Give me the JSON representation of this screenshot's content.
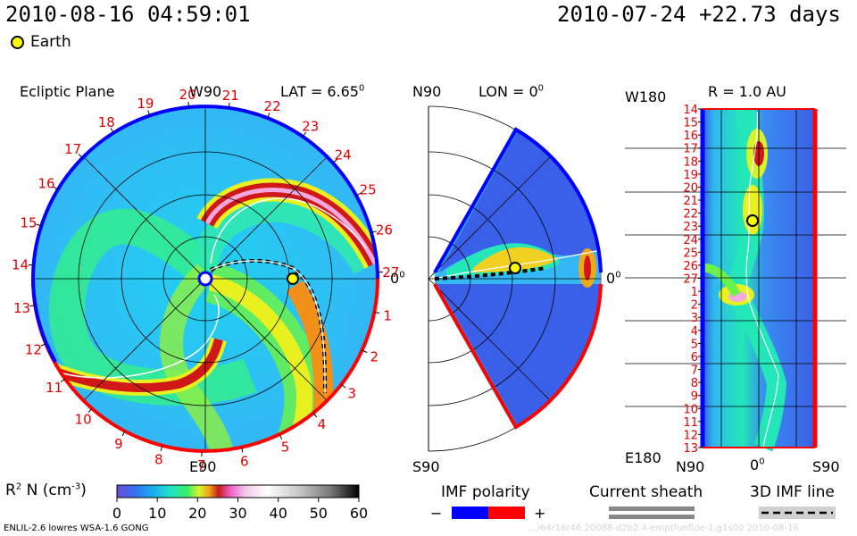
{
  "header": {
    "datetime": "2010-08-16 04:59:01",
    "reference": "2010-07-24 +22.73 days",
    "earth_legend": "Earth"
  },
  "ecliptic": {
    "title": "Ecliptic Plane",
    "top_label": "W90",
    "bottom_label": "E90",
    "lat_label": "LAT = 6.65",
    "lat_sup": "0",
    "right_zero": "0",
    "right_sup": "0",
    "rot_labels": [
      "14",
      "15",
      "16",
      "17",
      "18",
      "19",
      "20",
      "21",
      "22",
      "23",
      "24",
      "25",
      "26",
      "27",
      "1",
      "2",
      "3",
      "4",
      "5",
      "6",
      "7",
      "8",
      "9",
      "10",
      "11",
      "12",
      "13"
    ]
  },
  "meridional": {
    "top_label": "N90",
    "bottom_label": "S90",
    "lon_label": "LON = 0",
    "lon_sup": "0",
    "right_zero": "0",
    "right_sup": "0"
  },
  "strip": {
    "title": "R = 1.0 AU",
    "top_left": "W180",
    "bottom_left": "E180",
    "bottom_n": "N90",
    "bottom_zero": "0",
    "bottom_zero_sup": "0",
    "bottom_s": "S90",
    "rot_labels": [
      "14",
      "15",
      "16",
      "17",
      "18",
      "19",
      "20",
      "21",
      "22",
      "23",
      "24",
      "25",
      "26",
      "27",
      "1",
      "2",
      "3",
      "4",
      "5",
      "6",
      "7",
      "8",
      "9",
      "10",
      "11",
      "12",
      "13"
    ]
  },
  "colorbar": {
    "label_r": "R",
    "label_sup": "2",
    "label_n": " N (cm",
    "label_exp": "-3",
    "label_end": ")",
    "ticks": [
      "0",
      "10",
      "20",
      "30",
      "40",
      "50",
      "60"
    ],
    "colors": [
      "#6b50d8",
      "#3a6cf0",
      "#1aa7f2",
      "#21e2c8",
      "#38f06a",
      "#d8f22c",
      "#f0a818",
      "#c71b1b",
      "#f060c8",
      "#f0c8e8",
      "#ffffff",
      "#c8c8c8",
      "#7a7a7a",
      "#000000"
    ]
  },
  "legend": {
    "imf_title": "IMF polarity",
    "minus": "−",
    "plus": "+",
    "neg_color": "#0000ff",
    "pos_color": "#ff0000",
    "sheath_title": "Current sheath",
    "imf3d_title": "3D IMF line"
  },
  "footer": {
    "model": "ENLIL-2.6 lowres WSA-1.6 GONG",
    "run_id": ".../64r16r46.20088-d2b2.4-emptfunflde-1.g1s00   2010-08-16"
  }
}
